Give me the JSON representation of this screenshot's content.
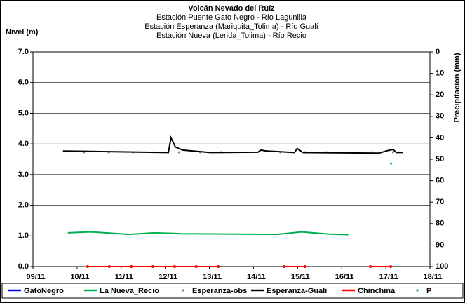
{
  "chart_data": {
    "type": "line",
    "title": "Volcán Nevado del Ruíz",
    "subtitle": [
      "Estación Puente Gato Negro - Río Lagunilla",
      "Estación Esperanza (Mariquita_Tolima) - Río Gualí",
      "Estación Nueva (Lerida_Tolima) - Río Recio"
    ],
    "y_label": "Nivel (m)",
    "y2_label": "Precipitacion (mm)",
    "xlim": [
      9,
      18
    ],
    "xticks": [
      {
        "value": 9,
        "label": "09/11"
      },
      {
        "value": 10,
        "label": "10/11"
      },
      {
        "value": 11,
        "label": "11/11"
      },
      {
        "value": 12,
        "label": "12/11"
      },
      {
        "value": 13,
        "label": "13/11"
      },
      {
        "value": 14,
        "label": "14/11"
      },
      {
        "value": 15,
        "label": "15/11"
      },
      {
        "value": 16,
        "label": "16/11"
      },
      {
        "value": 17,
        "label": "17/11"
      },
      {
        "value": 18,
        "label": "18/11"
      }
    ],
    "ylim": [
      0,
      7
    ],
    "yticks": [
      {
        "value": 0,
        "label": "0.0"
      },
      {
        "value": 1,
        "label": "1.0"
      },
      {
        "value": 2,
        "label": "2.0"
      },
      {
        "value": 3,
        "label": "3.0"
      },
      {
        "value": 4,
        "label": "4.0"
      },
      {
        "value": 5,
        "label": "5.0"
      },
      {
        "value": 6,
        "label": "6.0"
      },
      {
        "value": 7,
        "label": "7.0"
      }
    ],
    "y2lim": [
      100,
      0
    ],
    "y2ticks": [
      0,
      10,
      20,
      30,
      40,
      50,
      60,
      70,
      80,
      90,
      100
    ],
    "grid": true,
    "legend": "bottom",
    "series": [
      {
        "name": "GatoNegro",
        "color": "#0000ff",
        "style": "line",
        "x": [],
        "values": []
      },
      {
        "name": "La Nueva_Recio",
        "color": "#00b050",
        "style": "line",
        "x": [
          9.79,
          10.32,
          11.19,
          11.75,
          12.39,
          13.66,
          14.53,
          15.09,
          15.72,
          16.15
        ],
        "values": [
          1.1,
          1.13,
          1.05,
          1.1,
          1.07,
          1.06,
          1.05,
          1.13,
          1.06,
          1.04
        ]
      },
      {
        "name": "Esperanza-obs",
        "color": "#808080",
        "style": "marker",
        "x": [
          10.16,
          10.72,
          11.27,
          11.75,
          12.31,
          12.79,
          13.26,
          14.61,
          15.17,
          15.65,
          16.68,
          17.16
        ],
        "values": [
          3.73,
          3.73,
          3.73,
          3.73,
          3.73,
          3.73,
          3.73,
          3.73,
          3.73,
          3.73,
          3.73,
          3.73
        ]
      },
      {
        "name": "Esperanza-Guali",
        "color": "#000000",
        "style": "line",
        "x": [
          9.68,
          12.07,
          12.13,
          12.23,
          12.39,
          13.02,
          14.1,
          14.17,
          14.29,
          14.93,
          14.99,
          15.12,
          16.84,
          17.03,
          17.16,
          17.24,
          17.39
        ],
        "values": [
          3.77,
          3.72,
          4.2,
          3.9,
          3.8,
          3.72,
          3.73,
          3.8,
          3.77,
          3.72,
          3.85,
          3.72,
          3.7,
          3.78,
          3.82,
          3.72,
          3.72
        ]
      },
      {
        "name": "Chinchina",
        "color": "#ff0000",
        "style": "line-marker",
        "x": [
          10.24,
          10.73,
          11.23,
          11.72,
          12.21,
          12.7,
          13.2,
          null,
          14.69,
          15.17,
          null,
          16.65,
          17.11
        ],
        "values": [
          0,
          0,
          0,
          0,
          0,
          0,
          0,
          null,
          0,
          0,
          null,
          0,
          0
        ]
      },
      {
        "name": "P",
        "color": "#00b050",
        "style": "marker",
        "axis": "y2",
        "x": [
          17.12
        ],
        "values": [
          52
        ]
      }
    ]
  }
}
